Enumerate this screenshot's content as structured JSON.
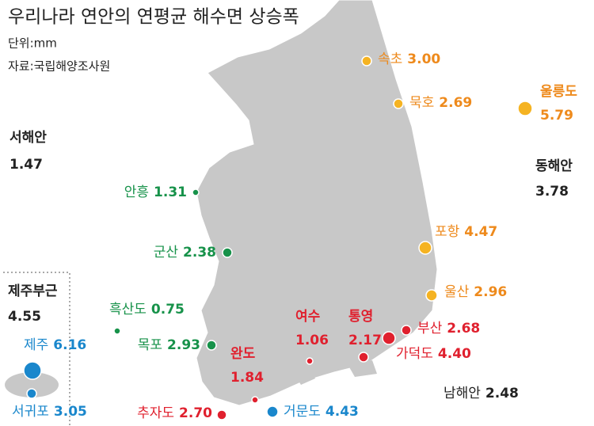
{
  "title": "우리나라 연안의 연평균 해수면 상승폭",
  "unit": "단위:mm",
  "source": "자료:국립해양조사원",
  "regions": [
    {
      "name": "서해안",
      "value": "1.47"
    },
    {
      "name": "동해안",
      "value": "3.78"
    },
    {
      "name": "남해안",
      "value": "2.48"
    },
    {
      "name": "제주부근",
      "value": "4.55"
    }
  ],
  "groups": [
    {
      "color": "#ee8a1c",
      "dot_color": "#f5b322",
      "stations": [
        {
          "name": "속초",
          "value": "3.00"
        },
        {
          "name": "묵호",
          "value": "2.69"
        },
        {
          "name": "울릉도",
          "value": "5.79"
        },
        {
          "name": "포항",
          "value": "4.47"
        },
        {
          "name": "울산",
          "value": "2.96"
        }
      ]
    },
    {
      "color": "#17924a",
      "dot_color": "#17924a",
      "stations": [
        {
          "name": "안흥",
          "value": "1.31"
        },
        {
          "name": "군산",
          "value": "2.38"
        },
        {
          "name": "흑산도",
          "value": "0.75"
        },
        {
          "name": "목포",
          "value": "2.93"
        }
      ]
    },
    {
      "color": "#e0202e",
      "dot_color": "#e0202e",
      "stations": [
        {
          "name": "여수",
          "value": "1.06"
        },
        {
          "name": "통영",
          "value": "2.17"
        },
        {
          "name": "부산",
          "value": "2.68"
        },
        {
          "name": "가덕도",
          "value": "4.40"
        },
        {
          "name": "완도",
          "value": "1.84"
        },
        {
          "name": "추자도",
          "value": "2.70"
        }
      ]
    },
    {
      "color": "#1a87cc",
      "dot_color": "#1a87cc",
      "stations": [
        {
          "name": "거문도",
          "value": "4.43"
        },
        {
          "name": "제주",
          "value": "6.16"
        },
        {
          "name": "서귀포",
          "value": "3.05"
        }
      ]
    }
  ]
}
